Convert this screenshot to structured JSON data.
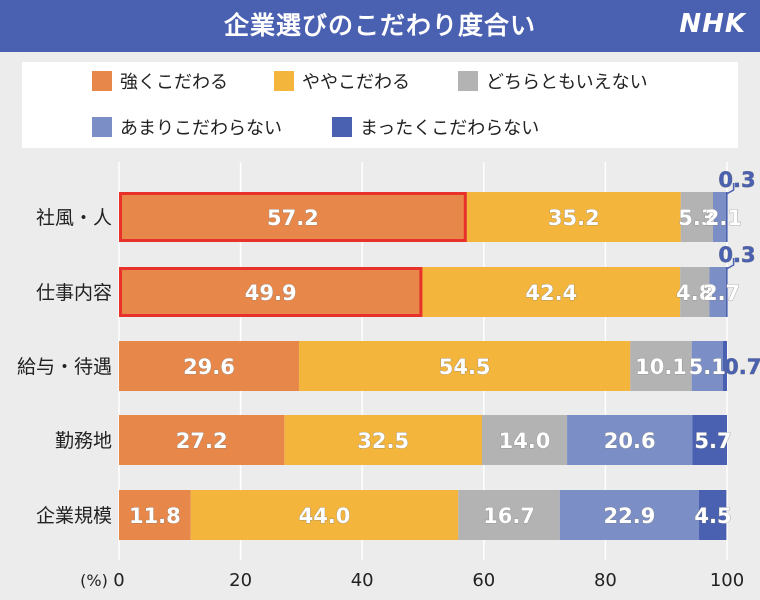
{
  "title": "企業選びのこだわり度合い",
  "logo": "NHK",
  "legend": [
    {
      "label": "強くこだわる",
      "color": "#e8874a"
    },
    {
      "label": "ややこだわる",
      "color": "#f3b53b"
    },
    {
      "label": "どちらともいえない",
      "color": "#b3b3b3"
    },
    {
      "label": "あまりこだわらない",
      "color": "#7b8ec6"
    },
    {
      "label": "まったくこだわらない",
      "color": "#4a60b0"
    }
  ],
  "chart_data": {
    "type": "bar",
    "orientation": "horizontal",
    "stacked": true,
    "categories": [
      "社風・人",
      "仕事内容",
      "給与・待遇",
      "勤務地",
      "企業規模"
    ],
    "series": [
      {
        "name": "強くこだわる",
        "values": [
          57.2,
          49.9,
          29.6,
          27.2,
          11.8
        ]
      },
      {
        "name": "ややこだわる",
        "values": [
          35.2,
          42.4,
          54.5,
          32.5,
          44.0
        ]
      },
      {
        "name": "どちらともいえない",
        "values": [
          5.3,
          4.8,
          10.1,
          14.0,
          16.7
        ]
      },
      {
        "name": "あまりこだわらない",
        "values": [
          2.1,
          2.7,
          5.1,
          20.6,
          22.9
        ]
      },
      {
        "name": "まったくこだわらない",
        "values": [
          0.3,
          0.3,
          0.7,
          5.7,
          4.5
        ]
      }
    ],
    "labels": [
      [
        "57.2",
        "35.2",
        "5.3",
        "2.1",
        "0.3"
      ],
      [
        "49.9",
        "42.4",
        "4.8",
        "2.7",
        "0.3"
      ],
      [
        "29.6",
        "54.5",
        "10.1",
        "5.1",
        "0.7"
      ],
      [
        "27.2",
        "32.5",
        "14.0",
        "20.6",
        "5.7"
      ],
      [
        "11.8",
        "44.0",
        "16.7",
        "22.9",
        "4.5"
      ]
    ],
    "highlighted": [
      [
        0,
        0
      ],
      [
        1,
        0
      ]
    ],
    "highlight_color": "#e8312b",
    "x_unit": "(%)",
    "x_ticks": [
      0,
      20,
      40,
      60,
      80,
      100
    ],
    "xlim": [
      0,
      100
    ],
    "grid": true
  }
}
